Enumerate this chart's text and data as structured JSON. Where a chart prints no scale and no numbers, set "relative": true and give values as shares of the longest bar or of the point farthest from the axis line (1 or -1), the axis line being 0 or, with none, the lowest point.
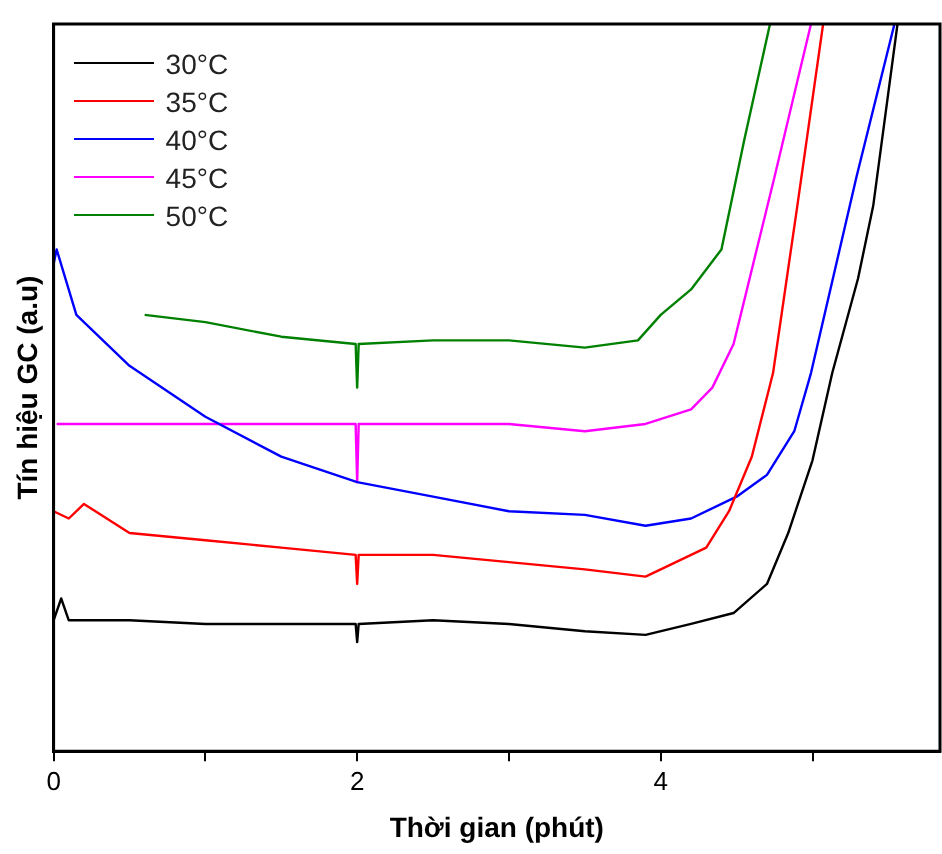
{
  "chart_data": {
    "type": "line",
    "xlabel": "Thời gian (phút)",
    "ylabel": "Tín hiệu GC (a.u)",
    "relative": true,
    "xlim": [
      0,
      5.84
    ],
    "xticks": [
      0,
      {
        "value": 1,
        "label": null
      },
      2,
      {
        "value": 3,
        "label": null
      },
      4,
      {
        "value": 5,
        "label": null
      }
    ],
    "legend": "top left",
    "grid": false,
    "marker": "none",
    "line_style": "solid",
    "series": [
      {
        "name": "30°C",
        "color": "#000000",
        "x": [
          0,
          0.05,
          0.1,
          0.5,
          1,
          1.5,
          1.99,
          2,
          2.01,
          2.5,
          3,
          3.5,
          3.9,
          4.2,
          4.48,
          4.7,
          4.84,
          5.0,
          5.13,
          5.3,
          5.4,
          5.56
        ],
        "values": [
          0.18,
          0.21,
          0.18,
          0.18,
          0.175,
          0.175,
          0.175,
          0.15,
          0.175,
          0.18,
          0.175,
          0.165,
          0.16,
          0.175,
          0.19,
          0.23,
          0.3,
          0.4,
          0.52,
          0.65,
          0.75,
          1.0
        ]
      },
      {
        "name": "35°C",
        "color": "#ff0000",
        "x": [
          0,
          0.1,
          0.2,
          0.5,
          1,
          1.5,
          1.99,
          2,
          2.01,
          2.5,
          3,
          3.5,
          3.9,
          4.1,
          4.3,
          4.45,
          4.6,
          4.74,
          4.9,
          5.07
        ],
        "values": [
          0.33,
          0.32,
          0.34,
          0.3,
          0.29,
          0.28,
          0.27,
          0.23,
          0.27,
          0.27,
          0.26,
          0.25,
          0.24,
          0.26,
          0.28,
          0.33,
          0.405,
          0.52,
          0.75,
          1.0
        ]
      },
      {
        "name": "40°C",
        "color": "#0000ff",
        "x": [
          0,
          0.02,
          0.15,
          0.5,
          1,
          1.5,
          2,
          2.5,
          3,
          3.5,
          3.9,
          4.2,
          4.5,
          4.7,
          4.88,
          4.99,
          5.29,
          5.54
        ],
        "values": [
          0.67,
          0.69,
          0.6,
          0.53,
          0.46,
          0.405,
          0.37,
          0.35,
          0.33,
          0.325,
          0.31,
          0.32,
          0.35,
          0.38,
          0.44,
          0.52,
          0.79,
          1.0
        ]
      },
      {
        "name": "45°C",
        "color": "#ff00ff",
        "x": [
          0.02,
          0.5,
          1,
          1.5,
          1.99,
          2,
          2.01,
          2.5,
          3,
          3.5,
          3.9,
          4.2,
          4.34,
          4.48,
          4.75,
          4.99
        ],
        "values": [
          0.45,
          0.45,
          0.45,
          0.45,
          0.45,
          0.37,
          0.45,
          0.45,
          0.45,
          0.44,
          0.45,
          0.47,
          0.5,
          0.56,
          0.79,
          1.0
        ]
      },
      {
        "name": "50°C",
        "color": "#008000",
        "x": [
          0.6,
          1,
          1.5,
          1.99,
          2,
          2.01,
          2.5,
          3,
          3.5,
          3.85,
          4.0,
          4.2,
          4.4,
          4.55,
          4.72
        ],
        "values": [
          0.6,
          0.59,
          0.57,
          0.56,
          0.5,
          0.56,
          0.565,
          0.565,
          0.555,
          0.565,
          0.6,
          0.635,
          0.69,
          0.84,
          1.0
        ]
      }
    ]
  }
}
